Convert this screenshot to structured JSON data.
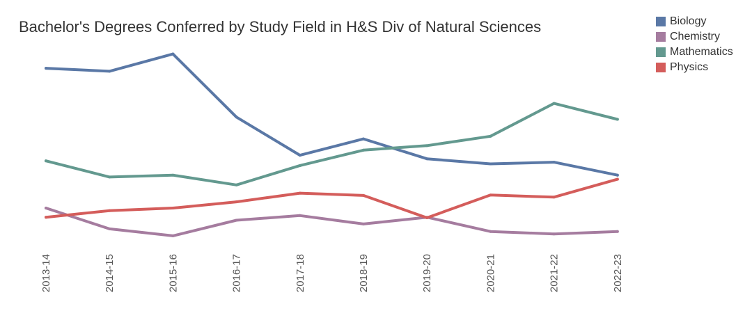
{
  "chart_data": {
    "type": "line",
    "title": "Bachelor's Degrees Conferred by Study Field in H&S Div of Natural Sciences",
    "categories": [
      "2013-14",
      "2014-15",
      "2015-16",
      "2016-17",
      "2017-18",
      "2018-19",
      "2019-20",
      "2020-21",
      "2021-22",
      "2022-23"
    ],
    "ylim": [
      0,
      100
    ],
    "grid": false,
    "legend_position": "top-right",
    "series": [
      {
        "name": "Biology",
        "color": "#5a78a6",
        "values": [
          89.6,
          88.0,
          97.2,
          63.6,
          43.3,
          52.0,
          41.4,
          38.7,
          39.6,
          32.7
        ]
      },
      {
        "name": "Chemistry",
        "color": "#a57c9f",
        "values": [
          15.2,
          4.1,
          0.4,
          8.7,
          11.2,
          6.7,
          10.3,
          2.7,
          1.4,
          2.7
        ]
      },
      {
        "name": "Mathematics",
        "color": "#63998f",
        "values": [
          40.3,
          31.7,
          32.7,
          27.5,
          37.8,
          46.0,
          48.4,
          53.4,
          70.9,
          62.4
        ]
      },
      {
        "name": "Physics",
        "color": "#d45d5b",
        "values": [
          10.3,
          13.8,
          15.2,
          18.5,
          23.1,
          21.9,
          10.0,
          22.1,
          21.0,
          30.5
        ]
      }
    ]
  }
}
